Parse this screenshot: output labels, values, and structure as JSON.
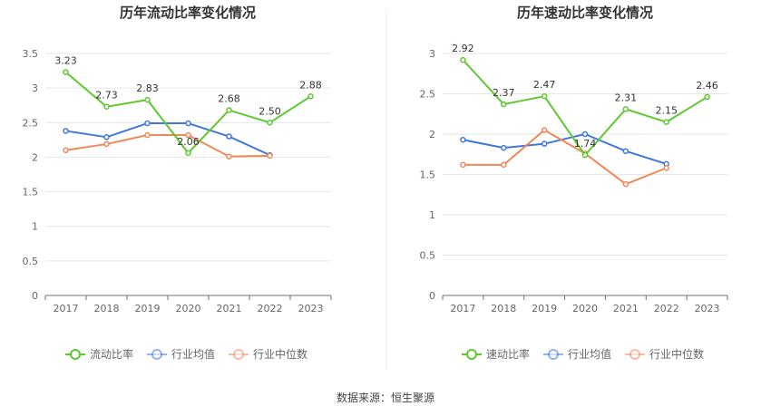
{
  "chart_data": [
    {
      "type": "line",
      "title": "历年流动比率变化情况",
      "categories": [
        "2017",
        "2018",
        "2019",
        "2020",
        "2021",
        "2022",
        "2023"
      ],
      "ylim": [
        0,
        3.5
      ],
      "yticks": [
        "0",
        "0.5",
        "1",
        "1.5",
        "2",
        "2.5",
        "3",
        "3.5"
      ],
      "ytick_values": [
        0,
        0.5,
        1,
        1.5,
        2,
        2.5,
        3,
        3.5
      ],
      "grid": true,
      "legend_position": "bottom",
      "series": [
        {
          "name": "流动比率",
          "color": "#5ec82f",
          "values": [
            3.23,
            2.73,
            2.83,
            2.06,
            2.68,
            2.5,
            2.88
          ],
          "labels": [
            "3.23",
            "2.73",
            "2.83",
            "2.06",
            "2.68",
            "2.50",
            "2.88"
          ]
        },
        {
          "name": "行业均值",
          "color": "#4077dc",
          "values": [
            2.38,
            2.29,
            2.49,
            2.49,
            2.3,
            2.03,
            null
          ]
        },
        {
          "name": "行业中位数",
          "color": "#f0885a",
          "values": [
            2.1,
            2.19,
            2.32,
            2.32,
            2.01,
            2.02,
            null
          ]
        }
      ]
    },
    {
      "type": "line",
      "title": "历年速动比率变化情况",
      "categories": [
        "2017",
        "2018",
        "2019",
        "2020",
        "2021",
        "2022",
        "2023"
      ],
      "ylim": [
        0,
        3
      ],
      "yticks": [
        "0",
        "0.5",
        "1",
        "1.5",
        "2",
        "2.5",
        "3"
      ],
      "ytick_values": [
        0,
        0.5,
        1,
        1.5,
        2,
        2.5,
        3
      ],
      "grid": true,
      "legend_position": "bottom",
      "series": [
        {
          "name": "速动比率",
          "color": "#5ec82f",
          "values": [
            2.92,
            2.37,
            2.47,
            1.74,
            2.31,
            2.15,
            2.46
          ],
          "labels": [
            "2.92",
            "2.37",
            "2.47",
            "1.74",
            "2.31",
            "2.15",
            "2.46"
          ]
        },
        {
          "name": "行业均值",
          "color": "#4077dc",
          "values": [
            1.93,
            1.83,
            1.88,
            2.0,
            1.79,
            1.63,
            null
          ]
        },
        {
          "name": "行业中位数",
          "color": "#f0885a",
          "values": [
            1.62,
            1.62,
            2.05,
            1.76,
            1.38,
            1.58,
            null
          ]
        }
      ]
    }
  ],
  "source_text": "数据来源：恒生聚源"
}
